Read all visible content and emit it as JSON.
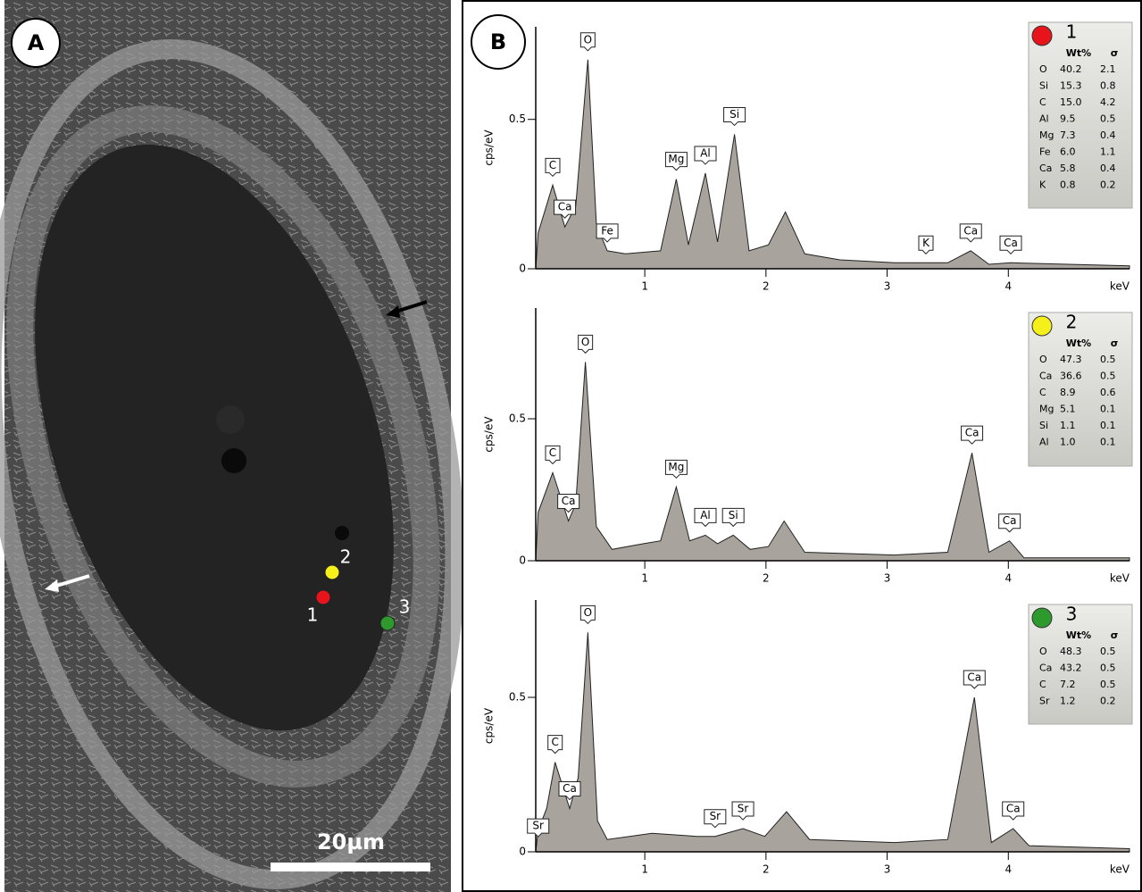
{
  "panel_a": {
    "label": "A",
    "points": [
      {
        "label": "1",
        "color": "#e8141c"
      },
      {
        "label": "2",
        "color": "#f5ef1a"
      },
      {
        "label": "3",
        "color": "#2e9a2e"
      }
    ],
    "scale": "20µm"
  },
  "panel_b_label": "B",
  "chart_data": [
    {
      "type": "area",
      "ylabel": "cps/eV",
      "xlabel": "keV",
      "color": "#a8a49d",
      "xlim": [
        0.1,
        5.0
      ],
      "ylim": [
        0,
        0.81
      ],
      "xticks": [
        1,
        2,
        3,
        4
      ],
      "yticks": [
        0,
        0.5
      ],
      "x": [
        0.12,
        0.24,
        0.34,
        0.43,
        0.53,
        0.6,
        0.69,
        0.84,
        1.13,
        1.26,
        1.36,
        1.5,
        1.6,
        1.74,
        1.86,
        2.02,
        2.16,
        2.32,
        2.61,
        3.06,
        3.32,
        3.5,
        3.69,
        3.84,
        4.02,
        5.0
      ],
      "values": [
        0.12,
        0.28,
        0.14,
        0.21,
        0.7,
        0.15,
        0.06,
        0.05,
        0.06,
        0.3,
        0.08,
        0.32,
        0.09,
        0.45,
        0.06,
        0.08,
        0.19,
        0.05,
        0.03,
        0.02,
        0.02,
        0.02,
        0.06,
        0.015,
        0.02,
        0.01
      ],
      "annotations": [
        {
          "text": "C",
          "x": 0.24,
          "y": 0.28
        },
        {
          "text": "Ca",
          "x": 0.34,
          "y": 0.14
        },
        {
          "text": "O",
          "x": 0.53,
          "y": 0.7
        },
        {
          "text": "Fe",
          "x": 0.69,
          "y": 0.06
        },
        {
          "text": "Mg",
          "x": 1.26,
          "y": 0.3
        },
        {
          "text": "Al",
          "x": 1.5,
          "y": 0.32
        },
        {
          "text": "Si",
          "x": 1.74,
          "y": 0.45
        },
        {
          "text": "K",
          "x": 3.32,
          "y": 0.02
        },
        {
          "text": "Ca",
          "x": 3.69,
          "y": 0.06
        },
        {
          "text": "Ca",
          "x": 4.02,
          "y": 0.02
        }
      ],
      "inset": {
        "label": "1",
        "color": "#e8141c",
        "columns": [
          "Wt%",
          "σ"
        ],
        "rows": [
          [
            "O",
            "40.2",
            "2.1"
          ],
          [
            "Si",
            "15.3",
            "0.8"
          ],
          [
            "C",
            "15.0",
            "4.2"
          ],
          [
            "Al",
            "9.5",
            "0.5"
          ],
          [
            "Mg",
            "7.3",
            "0.4"
          ],
          [
            "Fe",
            "6.0",
            "1.1"
          ],
          [
            "Ca",
            "5.8",
            "0.4"
          ],
          [
            "K",
            "0.8",
            "0.2"
          ]
        ]
      }
    },
    {
      "type": "area",
      "ylabel": "cps/eV",
      "xlabel": "keV",
      "color": "#a8a49d",
      "xlim": [
        0.1,
        5.0
      ],
      "ylim": [
        0,
        0.89
      ],
      "xticks": [
        1,
        2,
        3,
        4
      ],
      "yticks": [
        0,
        0.5
      ],
      "x": [
        0.12,
        0.24,
        0.37,
        0.43,
        0.51,
        0.6,
        0.73,
        0.99,
        1.13,
        1.26,
        1.37,
        1.5,
        1.6,
        1.73,
        1.87,
        2.02,
        2.15,
        2.32,
        3.06,
        3.5,
        3.7,
        3.84,
        4.01,
        4.13,
        5.0
      ],
      "values": [
        0.17,
        0.31,
        0.14,
        0.2,
        0.7,
        0.12,
        0.04,
        0.06,
        0.07,
        0.26,
        0.07,
        0.09,
        0.06,
        0.09,
        0.04,
        0.05,
        0.14,
        0.03,
        0.02,
        0.03,
        0.38,
        0.03,
        0.07,
        0.01,
        0.01
      ],
      "annotations": [
        {
          "text": "C",
          "x": 0.24,
          "y": 0.31
        },
        {
          "text": "Ca",
          "x": 0.37,
          "y": 0.14
        },
        {
          "text": "O",
          "x": 0.51,
          "y": 0.7
        },
        {
          "text": "Mg",
          "x": 1.26,
          "y": 0.26
        },
        {
          "text": "Al",
          "x": 1.5,
          "y": 0.09
        },
        {
          "text": "Si",
          "x": 1.73,
          "y": 0.09
        },
        {
          "text": "Ca",
          "x": 3.7,
          "y": 0.38
        },
        {
          "text": "Ca",
          "x": 4.01,
          "y": 0.07
        }
      ],
      "inset": {
        "label": "2",
        "color": "#f5ef1a",
        "columns": [
          "Wt%",
          "σ"
        ],
        "rows": [
          [
            "O",
            "47.3",
            "0.5"
          ],
          [
            "Ca",
            "36.6",
            "0.5"
          ],
          [
            "C",
            "8.9",
            "0.6"
          ],
          [
            "Mg",
            "5.1",
            "0.1"
          ],
          [
            "Si",
            "1.1",
            "0.1"
          ],
          [
            "Al",
            "1.0",
            "0.1"
          ]
        ]
      }
    },
    {
      "type": "area",
      "ylabel": "cps/eV",
      "xlabel": "keV",
      "color": "#a8a49d",
      "xlim": [
        0.1,
        5.0
      ],
      "ylim": [
        0,
        0.815
      ],
      "xticks": [
        1,
        2,
        3,
        4
      ],
      "yticks": [
        0,
        0.5
      ],
      "x": [
        0.12,
        0.19,
        0.26,
        0.38,
        0.45,
        0.53,
        0.61,
        0.69,
        1.06,
        1.43,
        1.58,
        1.81,
        1.99,
        2.17,
        2.36,
        3.06,
        3.5,
        3.72,
        3.86,
        4.04,
        4.17,
        5.0
      ],
      "values": [
        0.07,
        0.14,
        0.29,
        0.14,
        0.24,
        0.71,
        0.1,
        0.04,
        0.06,
        0.05,
        0.05,
        0.075,
        0.05,
        0.13,
        0.04,
        0.03,
        0.04,
        0.5,
        0.03,
        0.075,
        0.02,
        0.01
      ],
      "annotations": [
        {
          "text": "Sr",
          "x": 0.12,
          "y": 0.02
        },
        {
          "text": "C",
          "x": 0.26,
          "y": 0.29
        },
        {
          "text": "Ca",
          "x": 0.38,
          "y": 0.14
        },
        {
          "text": "O",
          "x": 0.53,
          "y": 0.71
        },
        {
          "text": "Sr",
          "x": 1.58,
          "y": 0.05
        },
        {
          "text": "Sr",
          "x": 1.81,
          "y": 0.075
        },
        {
          "text": "Ca",
          "x": 3.72,
          "y": 0.5
        },
        {
          "text": "Ca",
          "x": 4.04,
          "y": 0.075
        }
      ],
      "inset": {
        "label": "3",
        "color": "#2e9a2e",
        "columns": [
          "Wt%",
          "σ"
        ],
        "rows": [
          [
            "O",
            "48.3",
            "0.5"
          ],
          [
            "Ca",
            "43.2",
            "0.5"
          ],
          [
            "C",
            "7.2",
            "0.5"
          ],
          [
            "Sr",
            "1.2",
            "0.2"
          ]
        ]
      }
    }
  ]
}
